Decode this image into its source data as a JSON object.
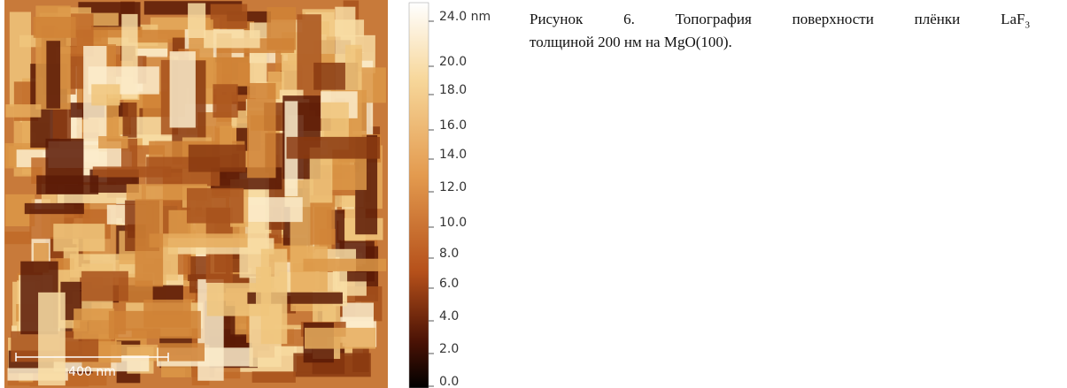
{
  "figure": {
    "image": {
      "scale_bar_label": "400 nm"
    },
    "colorbar": {
      "labels": [
        "24.0 nm",
        "20.0",
        "18.0",
        "16.0",
        "14.0",
        "12.0",
        "10.0",
        "8.0",
        "6.0",
        "4.0",
        "2.0",
        "0.0"
      ]
    },
    "caption": {
      "line1": "Рисунок 6. Топография поверхности плёнки LaF",
      "subscript": "3",
      "line2": "толщиной 200 нм на MgO(100)."
    }
  }
}
